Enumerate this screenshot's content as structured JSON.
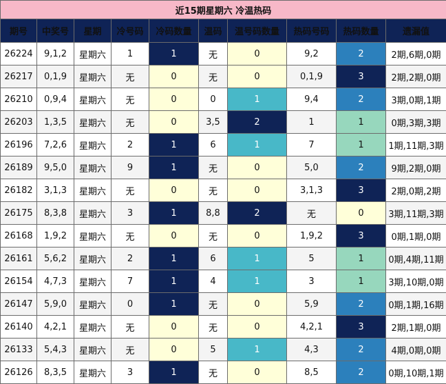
{
  "title": "近15期星期六 冷温热码",
  "headers": [
    "期号",
    "中奖号",
    "星期",
    "冷号码",
    "冷码数量",
    "温码",
    "温号码数量",
    "热码号码",
    "热码数量",
    "遗漏值"
  ],
  "colors": {
    "title_bg": "#f7b8c8",
    "header_bg": "#0f2356",
    "navy": "#0f2356",
    "pale_yellow": "#ffffd9",
    "teal": "#48b8c8",
    "blue": "#2c80bc",
    "mint": "#97d7bd"
  },
  "rows": [
    {
      "period": "26224",
      "draw": "9,1,2",
      "weekday": "星期六",
      "cold": "1",
      "cold_count": "1",
      "warm": "无",
      "warm_count": "0",
      "hot": "9,2",
      "hot_count": "2",
      "omission": "2期,6期,0期"
    },
    {
      "period": "26217",
      "draw": "0,1,9",
      "weekday": "星期六",
      "cold": "无",
      "cold_count": "0",
      "warm": "无",
      "warm_count": "0",
      "hot": "0,1,9",
      "hot_count": "3",
      "omission": "2期,2期,0期"
    },
    {
      "period": "26210",
      "draw": "0,9,4",
      "weekday": "星期六",
      "cold": "无",
      "cold_count": "0",
      "warm": "0",
      "warm_count": "1",
      "hot": "9,4",
      "hot_count": "2",
      "omission": "3期,0期,1期"
    },
    {
      "period": "26203",
      "draw": "1,3,5",
      "weekday": "星期六",
      "cold": "无",
      "cold_count": "0",
      "warm": "3,5",
      "warm_count": "2",
      "hot": "1",
      "hot_count": "1",
      "omission": "0期,3期,3期"
    },
    {
      "period": "26196",
      "draw": "7,2,6",
      "weekday": "星期六",
      "cold": "2",
      "cold_count": "1",
      "warm": "6",
      "warm_count": "1",
      "hot": "7",
      "hot_count": "1",
      "omission": "1期,11期,3期"
    },
    {
      "period": "26189",
      "draw": "9,5,0",
      "weekday": "星期六",
      "cold": "9",
      "cold_count": "1",
      "warm": "无",
      "warm_count": "0",
      "hot": "5,0",
      "hot_count": "2",
      "omission": "9期,2期,0期"
    },
    {
      "period": "26182",
      "draw": "3,1,3",
      "weekday": "星期六",
      "cold": "无",
      "cold_count": "0",
      "warm": "无",
      "warm_count": "0",
      "hot": "3,1,3",
      "hot_count": "3",
      "omission": "2期,0期,2期"
    },
    {
      "period": "26175",
      "draw": "8,3,8",
      "weekday": "星期六",
      "cold": "3",
      "cold_count": "1",
      "warm": "8,8",
      "warm_count": "2",
      "hot": "无",
      "hot_count": "0",
      "omission": "3期,11期,3期"
    },
    {
      "period": "26168",
      "draw": "1,9,2",
      "weekday": "星期六",
      "cold": "无",
      "cold_count": "0",
      "warm": "无",
      "warm_count": "0",
      "hot": "1,9,2",
      "hot_count": "3",
      "omission": "0期,1期,0期"
    },
    {
      "period": "26161",
      "draw": "5,6,2",
      "weekday": "星期六",
      "cold": "2",
      "cold_count": "1",
      "warm": "6",
      "warm_count": "1",
      "hot": "5",
      "hot_count": "1",
      "omission": "0期,4期,11期"
    },
    {
      "period": "26154",
      "draw": "4,7,3",
      "weekday": "星期六",
      "cold": "7",
      "cold_count": "1",
      "warm": "4",
      "warm_count": "1",
      "hot": "3",
      "hot_count": "1",
      "omission": "3期,10期,0期"
    },
    {
      "period": "26147",
      "draw": "5,9,0",
      "weekday": "星期六",
      "cold": "0",
      "cold_count": "1",
      "warm": "无",
      "warm_count": "0",
      "hot": "5,9",
      "hot_count": "2",
      "omission": "0期,1期,16期"
    },
    {
      "period": "26140",
      "draw": "4,2,1",
      "weekday": "星期六",
      "cold": "无",
      "cold_count": "0",
      "warm": "无",
      "warm_count": "0",
      "hot": "4,2,1",
      "hot_count": "3",
      "omission": "2期,1期,0期"
    },
    {
      "period": "26133",
      "draw": "5,4,3",
      "weekday": "星期六",
      "cold": "无",
      "cold_count": "0",
      "warm": "5",
      "warm_count": "1",
      "hot": "4,3",
      "hot_count": "2",
      "omission": "4期,0期,0期"
    },
    {
      "period": "26126",
      "draw": "8,3,5",
      "weekday": "星期六",
      "cold": "3",
      "cold_count": "1",
      "warm": "无",
      "warm_count": "0",
      "hot": "8,5",
      "hot_count": "2",
      "omission": "0期,10期,1期"
    }
  ]
}
